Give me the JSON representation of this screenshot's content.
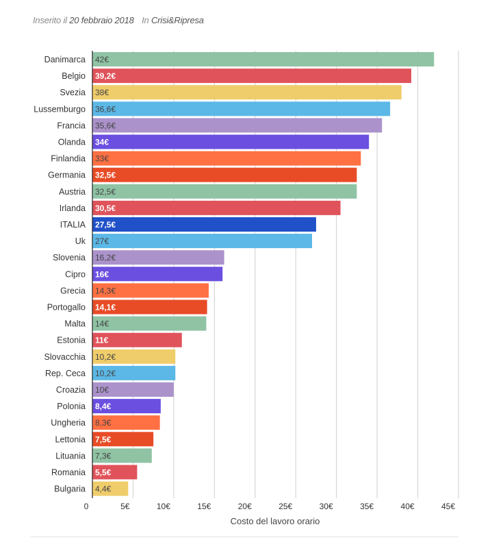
{
  "header": {
    "inserito_label": "Inserito il",
    "date": "20 febbraio 2018",
    "in_label": "In",
    "category": "Crisi&Ripresa"
  },
  "chart_data": {
    "type": "bar",
    "orientation": "horizontal",
    "title": "",
    "xlabel": "Costo del lavoro orario",
    "ylabel": "",
    "xlim": [
      0,
      45
    ],
    "grid": true,
    "x_ticks": [
      "0",
      "5€",
      "10€",
      "15€",
      "20€",
      "25€",
      "30€",
      "35€",
      "40€",
      "45€"
    ],
    "categories": [
      "Danimarca",
      "Belgio",
      "Svezia",
      "Lussemburgo",
      "Francia",
      "Olanda",
      "Finlandia",
      "Germania",
      "Austria",
      "Irlanda",
      "ITALIA",
      "Uk",
      "Slovenia",
      "Cipro",
      "Grecia",
      "Portogallo",
      "Malta",
      "Estonia",
      "Slovacchia",
      "Rep. Ceca",
      "Croazia",
      "Polonia",
      "Ungheria",
      "Lettonia",
      "Lituania",
      "Romania",
      "Bulgaria"
    ],
    "values": [
      42,
      39.2,
      38,
      36.6,
      35.6,
      34,
      33,
      32.5,
      32.5,
      30.5,
      27.5,
      27,
      16.2,
      16,
      14.3,
      14.1,
      14,
      11,
      10.2,
      10.2,
      10,
      8.4,
      8.3,
      7.5,
      7.3,
      5.5,
      4.4
    ],
    "labels": [
      "42€",
      "39,2€",
      "38€",
      "36,6€",
      "35,6€",
      "34€",
      "33€",
      "32,5€",
      "32,5€",
      "30,5€",
      "27,5€",
      "27€",
      "16,2€",
      "16€",
      "14,3€",
      "14,1€",
      "14€",
      "11€",
      "10,2€",
      "10,2€",
      "10€",
      "8,4€",
      "8,3€",
      "7,5€",
      "7,3€",
      "5,5€",
      "4,4€"
    ],
    "colors": [
      "#8fc3a4",
      "#e0535b",
      "#f0cd6b",
      "#5cb8e6",
      "#ab92cb",
      "#6b4fe0",
      "#ff7043",
      "#e84c27",
      "#8fc3a4",
      "#e0535b",
      "#2051c8",
      "#5cb8e6",
      "#ab92cb",
      "#6b4fe0",
      "#ff7043",
      "#e84c27",
      "#8fc3a4",
      "#e0535b",
      "#f0cd6b",
      "#5cb8e6",
      "#ab92cb",
      "#6b4fe0",
      "#ff7043",
      "#e84c27",
      "#8fc3a4",
      "#e0535b",
      "#f0cd6b"
    ],
    "label_colors": [
      "#444444",
      "#ffffff",
      "#444444",
      "#444444",
      "#444444",
      "#ffffff",
      "#444444",
      "#ffffff",
      "#444444",
      "#ffffff",
      "#ffffff",
      "#444444",
      "#444444",
      "#ffffff",
      "#444444",
      "#ffffff",
      "#444444",
      "#ffffff",
      "#444444",
      "#444444",
      "#444444",
      "#ffffff",
      "#444444",
      "#ffffff",
      "#444444",
      "#ffffff",
      "#444444"
    ]
  }
}
